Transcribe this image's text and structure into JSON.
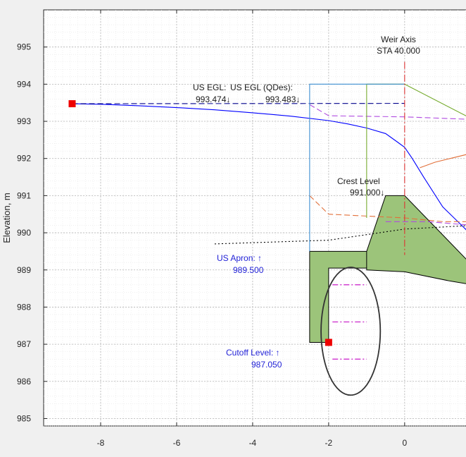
{
  "chart_data": {
    "type": "line",
    "title": "",
    "xlabel": "",
    "ylabel": "Elevation, m",
    "xlim": [
      -9.5,
      1.8
    ],
    "ylim": [
      984.8,
      996
    ],
    "grid": "major dotted + minor",
    "x_ticks": [
      -8,
      -6,
      -4,
      -2,
      0
    ],
    "x_tick_labels": [
      "-8",
      "-6",
      "-4",
      "-2",
      "0"
    ],
    "y_ticks": [
      985,
      986,
      987,
      988,
      989,
      990,
      991,
      992,
      993,
      994,
      995
    ],
    "y_tick_labels": [
      "985",
      "986",
      "987",
      "988",
      "989",
      "990",
      "991",
      "992",
      "993",
      "994",
      "995"
    ],
    "series": [
      {
        "color": "#0000ff",
        "dash": "",
        "x": [
          -8.75,
          -8,
          -7,
          -6,
          -5,
          -4,
          -3,
          -2,
          -1.5,
          -1,
          -0.5,
          -0.2,
          0,
          0.2,
          0.5,
          1,
          1.5,
          1.8
        ],
        "y": [
          993.474,
          993.46,
          993.42,
          993.37,
          993.31,
          993.23,
          993.14,
          993.02,
          992.93,
          992.82,
          992.67,
          992.45,
          992.3,
          992.0,
          991.5,
          990.7,
          990.2,
          989.9
        ]
      },
      {
        "color": "#00008b",
        "dash": "8,4",
        "x": [
          -8.75,
          -2.5,
          0
        ],
        "y": [
          993.474,
          993.48,
          993.483
        ]
      },
      {
        "color": "#b04be0",
        "dash": "8,4",
        "x": [
          -2.5,
          -2.0,
          0,
          1.8
        ],
        "y": [
          993.45,
          993.15,
          993.12,
          993.05
        ]
      },
      {
        "color": "#e2703a",
        "dash": "8,4",
        "x": [
          -2.5,
          -2.0,
          -1.0,
          0,
          1.0,
          1.8
        ],
        "y": [
          991.0,
          990.5,
          990.45,
          990.4,
          990.3,
          990.3
        ]
      },
      {
        "color": "#e2703a",
        "dash": "",
        "x": [
          0.4,
          0.8,
          1.2,
          1.8
        ],
        "y": [
          991.75,
          991.9,
          992.0,
          992.15
        ]
      },
      {
        "color": "#b04be0",
        "dash": "8,4",
        "x": [
          -0.5,
          0,
          0.6,
          1.2,
          1.8
        ],
        "y": [
          990.3,
          990.3,
          990.3,
          990.25,
          990.2
        ]
      },
      {
        "color": "#000000",
        "dash": "2,3",
        "x": [
          -5.0,
          -3.5,
          -2.0,
          -1.0,
          0,
          1.8
        ],
        "y": [
          989.7,
          989.75,
          989.8,
          989.95,
          990.1,
          990.2
        ]
      },
      {
        "color": "#77ac30",
        "dash": "",
        "x": [
          -1.0,
          -1.0,
          0,
          1.8
        ],
        "y": [
          990.4,
          994.0,
          994.0,
          993.05
        ]
      },
      {
        "color": "#3d8fd1",
        "dash": "",
        "x": [
          -2.5,
          -2.5,
          0
        ],
        "y": [
          989.5,
          994.0,
          994.0
        ]
      },
      {
        "color": "#dd3333",
        "dash": "10,3,2,3",
        "x": [
          0,
          0
        ],
        "y": [
          994.6,
          989.4
        ]
      },
      {
        "color": "#c300c3",
        "dash": "8,3,2,3",
        "x": [
          -1.9,
          -1.0
        ],
        "y": [
          988.6,
          988.6
        ]
      },
      {
        "color": "#c300c3",
        "dash": "8,3,2,3",
        "x": [
          -1.9,
          -1.0
        ],
        "y": [
          987.6,
          987.6
        ]
      },
      {
        "color": "#c300c3",
        "dash": "8,3,2,3",
        "x": [
          -1.9,
          -1.0
        ],
        "y": [
          986.6,
          986.6
        ]
      }
    ],
    "polygons": [
      {
        "fill": "#9cc47a",
        "stroke": "#000000",
        "x": [
          -2.5,
          -2.5,
          -2.0,
          -2.0,
          -1.0,
          -1.0,
          -0.5,
          0,
          1.8,
          1.8,
          1.2,
          0,
          -1.0,
          -1.0,
          -2.5
        ],
        "y": [
          989.5,
          987.05,
          987.05,
          989.05,
          989.05,
          989.5,
          991.0,
          991.0,
          989.1,
          988.6,
          988.7,
          988.95,
          989.0,
          989.5,
          989.5
        ]
      }
    ],
    "ellipse": {
      "cx": -1.42,
      "cy": 987.35,
      "rx": 0.78,
      "ry": 1.72,
      "color": "#333333"
    },
    "markers": [
      {
        "x": -8.75,
        "y": 993.474,
        "color": "#ee0000"
      },
      {
        "x": -2.0,
        "y": 987.05,
        "color": "#ee0000"
      }
    ],
    "annotations": {
      "weir_axis_label": "Weir Axis",
      "weir_axis_sta": "STA 40.000",
      "us_egl_label": "US EGL:",
      "us_egl_value": "993.474↓",
      "us_egl_qdes_label": "US EGL (QDes):",
      "us_egl_qdes_value": "993.483↓",
      "crest_label": "Crest Level",
      "crest_value": "991.000↓",
      "apron_label": "US Apron: ↑",
      "apron_value": "989.500",
      "cutoff_label": "Cutoff Level: ↑",
      "cutoff_value": "987.050"
    }
  }
}
